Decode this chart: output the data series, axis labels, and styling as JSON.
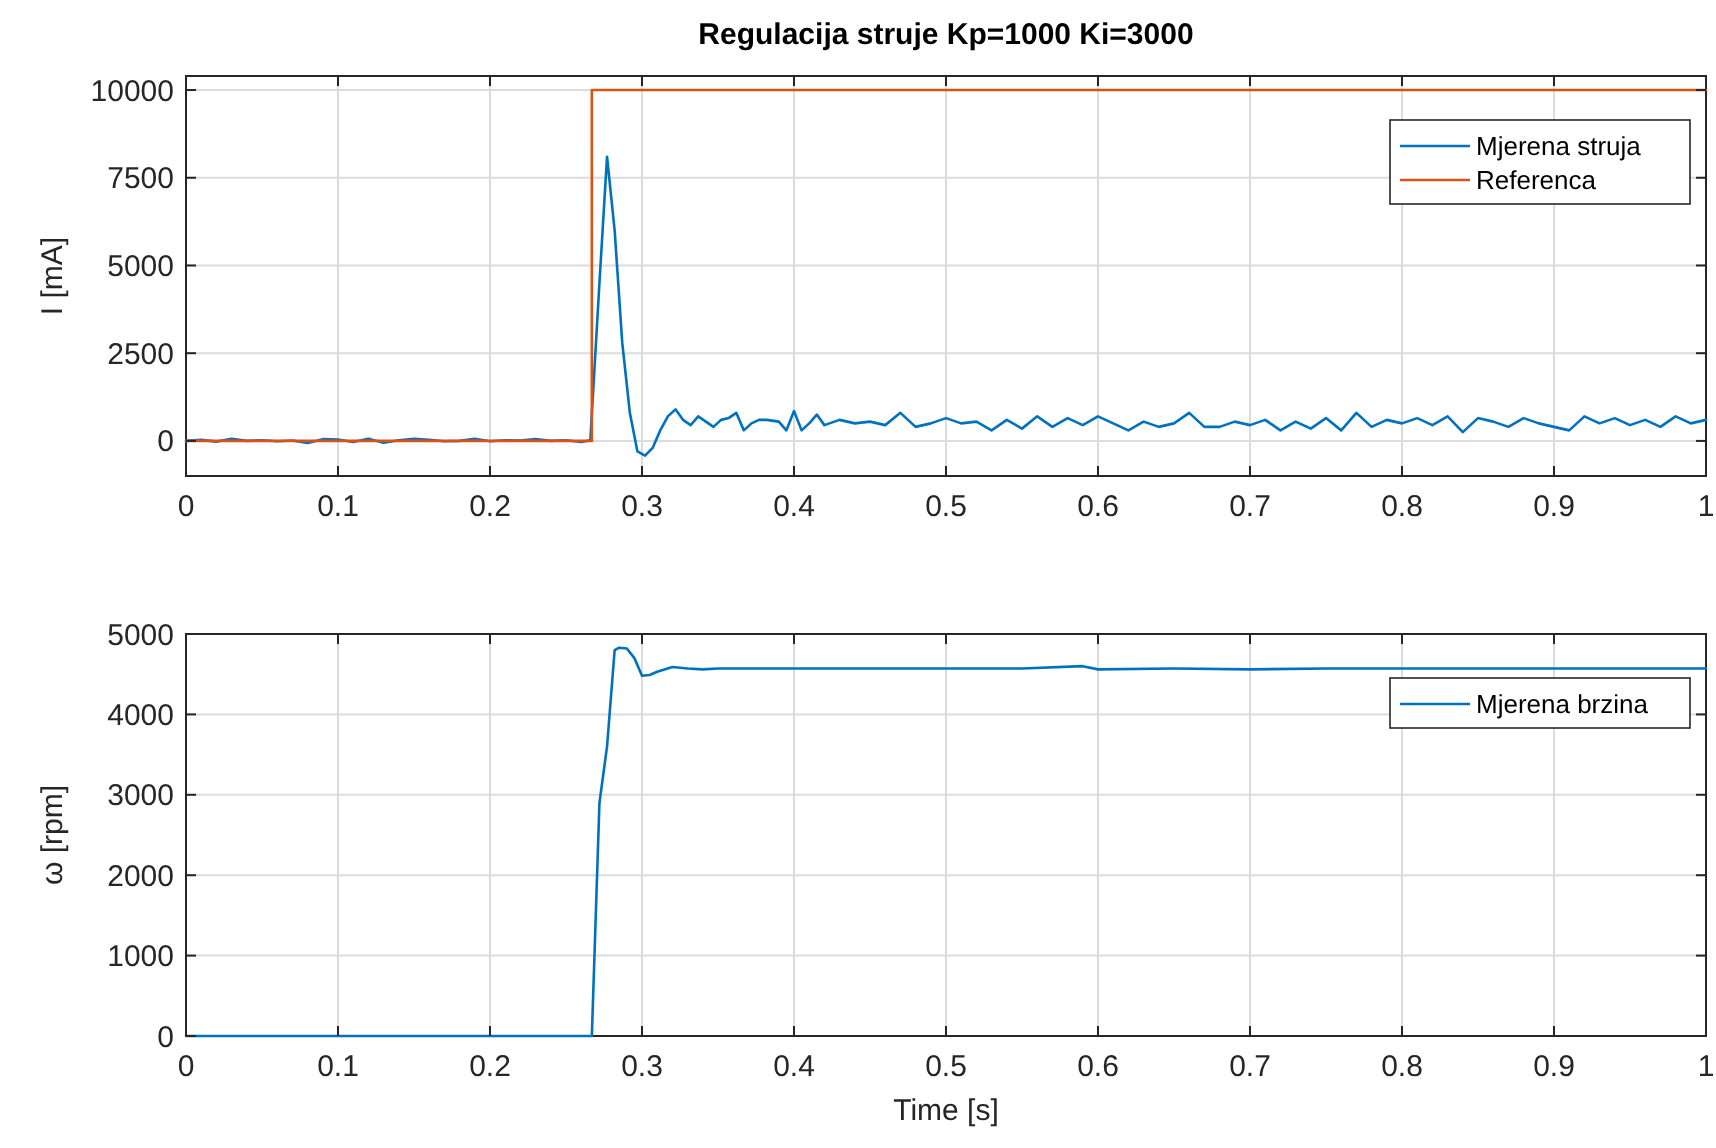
{
  "chart_data": [
    {
      "type": "line",
      "title": "Regulacija struje Kp=1000 Ki=3000",
      "ylabel": "I [mA]",
      "xlim": [
        0,
        1
      ],
      "ylim": [
        -1000,
        10400
      ],
      "xticks": [
        0,
        0.1,
        0.2,
        0.3,
        0.4,
        0.5,
        0.6,
        0.7,
        0.8,
        0.9,
        1
      ],
      "yticks": [
        0,
        2500,
        5000,
        7500,
        10000
      ],
      "grid": true,
      "legend": "top right",
      "line_style": "solid",
      "series": [
        {
          "name": "Mjerena struja",
          "color": "#0072bd",
          "x": [
            0,
            0.01,
            0.02,
            0.03,
            0.04,
            0.05,
            0.06,
            0.07,
            0.08,
            0.09,
            0.1,
            0.11,
            0.12,
            0.13,
            0.14,
            0.15,
            0.16,
            0.17,
            0.18,
            0.19,
            0.2,
            0.21,
            0.22,
            0.23,
            0.24,
            0.25,
            0.26,
            0.266,
            0.272,
            0.277,
            0.282,
            0.287,
            0.292,
            0.297,
            0.302,
            0.307,
            0.312,
            0.317,
            0.322,
            0.327,
            0.332,
            0.337,
            0.342,
            0.347,
            0.352,
            0.357,
            0.362,
            0.367,
            0.372,
            0.377,
            0.382,
            0.39,
            0.395,
            0.4,
            0.405,
            0.41,
            0.415,
            0.42,
            0.43,
            0.44,
            0.45,
            0.46,
            0.47,
            0.48,
            0.49,
            0.5,
            0.51,
            0.52,
            0.53,
            0.54,
            0.55,
            0.56,
            0.57,
            0.58,
            0.59,
            0.6,
            0.61,
            0.62,
            0.63,
            0.64,
            0.65,
            0.66,
            0.67,
            0.68,
            0.69,
            0.7,
            0.71,
            0.72,
            0.73,
            0.74,
            0.75,
            0.76,
            0.77,
            0.78,
            0.79,
            0.8,
            0.81,
            0.82,
            0.83,
            0.84,
            0.85,
            0.86,
            0.87,
            0.88,
            0.89,
            0.9,
            0.91,
            0.92,
            0.93,
            0.94,
            0.95,
            0.96,
            0.97,
            0.98,
            0.99,
            1
          ],
          "values": [
            0,
            30,
            -20,
            60,
            0,
            20,
            -10,
            10,
            -60,
            50,
            40,
            -30,
            60,
            -50,
            20,
            60,
            30,
            -10,
            0,
            60,
            -10,
            20,
            10,
            50,
            0,
            20,
            -30,
            20,
            4500,
            8100,
            6000,
            2800,
            800,
            -300,
            -420,
            -200,
            300,
            700,
            900,
            600,
            450,
            700,
            550,
            400,
            600,
            650,
            800,
            300,
            500,
            600,
            600,
            550,
            300,
            850,
            300,
            500,
            750,
            450,
            600,
            500,
            550,
            450,
            800,
            400,
            500,
            650,
            500,
            550,
            300,
            600,
            350,
            700,
            400,
            650,
            450,
            700,
            500,
            300,
            550,
            400,
            500,
            800,
            400,
            400,
            550,
            450,
            600,
            300,
            550,
            350,
            650,
            300,
            800,
            400,
            600,
            500,
            650,
            450,
            700,
            250,
            650,
            550,
            400,
            650,
            500,
            400,
            300,
            700,
            500,
            650,
            450,
            600,
            400,
            700,
            500,
            600
          ]
        },
        {
          "name": "Referenca",
          "color": "#d95319",
          "x": [
            0,
            0.267,
            0.267,
            1
          ],
          "values": [
            0,
            0,
            10000,
            10000
          ]
        }
      ]
    },
    {
      "type": "line",
      "xlabel": "Time [s]",
      "ylabel": "ω [rpm]",
      "xlim": [
        0,
        1
      ],
      "ylim": [
        0,
        5000
      ],
      "xticks": [
        0,
        0.1,
        0.2,
        0.3,
        0.4,
        0.5,
        0.6,
        0.7,
        0.8,
        0.9,
        1
      ],
      "yticks": [
        0,
        1000,
        2000,
        3000,
        4000,
        5000
      ],
      "grid": true,
      "legend": "top right",
      "line_style": "solid",
      "series": [
        {
          "name": "Mjerena brzina",
          "color": "#0072bd",
          "x": [
            0,
            0.1,
            0.2,
            0.267,
            0.272,
            0.277,
            0.282,
            0.285,
            0.29,
            0.295,
            0.3,
            0.305,
            0.31,
            0.32,
            0.33,
            0.34,
            0.35,
            0.4,
            0.45,
            0.5,
            0.55,
            0.59,
            0.6,
            0.65,
            0.7,
            0.75,
            0.8,
            0.85,
            0.9,
            0.95,
            1
          ],
          "values": [
            0,
            0,
            0,
            0,
            2900,
            3600,
            4800,
            4830,
            4820,
            4700,
            4480,
            4490,
            4530,
            4590,
            4570,
            4560,
            4570,
            4570,
            4570,
            4570,
            4570,
            4600,
            4560,
            4570,
            4560,
            4570,
            4570,
            4570,
            4570,
            4570,
            4570
          ]
        }
      ]
    }
  ]
}
